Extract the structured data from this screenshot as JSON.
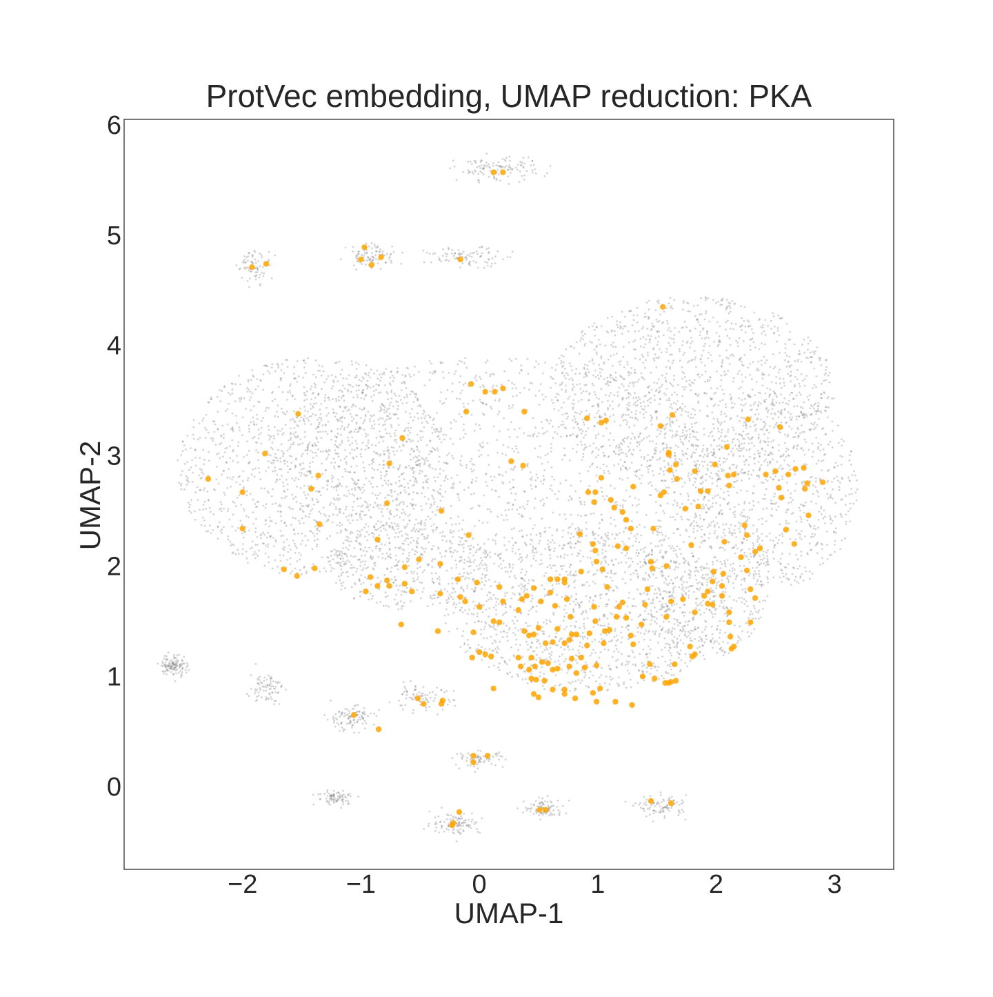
{
  "chart_data": {
    "type": "scatter",
    "title": "ProtVec embedding, UMAP reduction: PKA",
    "xlabel": "UMAP-1",
    "ylabel": "UMAP-2",
    "xlim": [
      -3.0,
      3.5
    ],
    "ylim": [
      -0.75,
      6.05
    ],
    "xticks": [
      -2,
      -1,
      0,
      1,
      2,
      3
    ],
    "yticks": [
      0,
      1,
      2,
      3,
      4,
      5,
      6
    ],
    "xtick_labels": [
      "−2",
      "−1",
      "0",
      "1",
      "2",
      "3"
    ],
    "ytick_labels": [
      "0",
      "1",
      "2",
      "3",
      "4",
      "5",
      "6"
    ],
    "grid": false,
    "legend": "none",
    "colors": {
      "background": "#ffffff",
      "frame": "#262626",
      "highlight": "#ffa500",
      "background_points": "#808080"
    },
    "background_clusters": [
      {
        "cx": 0.1,
        "cy": 3.0,
        "rx": 1.9,
        "ry": 0.9,
        "n": 1300
      },
      {
        "cx": -1.4,
        "cy": 2.9,
        "rx": 1.15,
        "ry": 1.0,
        "n": 1400
      },
      {
        "cx": 1.8,
        "cy": 3.6,
        "rx": 1.2,
        "ry": 0.85,
        "n": 1300
      },
      {
        "cx": 2.5,
        "cy": 2.7,
        "rx": 0.7,
        "ry": 0.9,
        "n": 700
      },
      {
        "cx": 0.9,
        "cy": 1.6,
        "rx": 1.2,
        "ry": 0.75,
        "n": 1300
      },
      {
        "cx": 1.9,
        "cy": 1.9,
        "rx": 0.55,
        "ry": 0.75,
        "n": 500
      },
      {
        "cx": -0.6,
        "cy": 2.0,
        "rx": 0.7,
        "ry": 0.4,
        "n": 400
      },
      {
        "cx": 0.15,
        "cy": 5.6,
        "rx": 0.25,
        "ry": 0.08,
        "n": 120
      },
      {
        "cx": -0.1,
        "cy": 4.8,
        "rx": 0.25,
        "ry": 0.06,
        "n": 90
      },
      {
        "cx": -0.9,
        "cy": 4.82,
        "rx": 0.15,
        "ry": 0.08,
        "n": 90
      },
      {
        "cx": -1.9,
        "cy": 4.72,
        "rx": 0.1,
        "ry": 0.1,
        "n": 70
      },
      {
        "cx": -2.58,
        "cy": 1.1,
        "rx": 0.08,
        "ry": 0.07,
        "n": 120
      },
      {
        "cx": -1.8,
        "cy": 0.9,
        "rx": 0.1,
        "ry": 0.1,
        "n": 80
      },
      {
        "cx": -1.1,
        "cy": 0.62,
        "rx": 0.15,
        "ry": 0.08,
        "n": 100
      },
      {
        "cx": -0.5,
        "cy": 0.8,
        "rx": 0.2,
        "ry": 0.08,
        "n": 80
      },
      {
        "cx": 0.0,
        "cy": 0.25,
        "rx": 0.15,
        "ry": 0.05,
        "n": 70
      },
      {
        "cx": -1.2,
        "cy": -0.1,
        "rx": 0.12,
        "ry": 0.05,
        "n": 80
      },
      {
        "cx": -0.2,
        "cy": -0.33,
        "rx": 0.15,
        "ry": 0.07,
        "n": 100
      },
      {
        "cx": 0.55,
        "cy": -0.2,
        "rx": 0.12,
        "ry": 0.06,
        "n": 90
      },
      {
        "cx": 1.55,
        "cy": -0.18,
        "rx": 0.15,
        "ry": 0.07,
        "n": 90
      }
    ],
    "series": [
      {
        "name": "",
        "color": "#ffa500",
        "points": [
          [
            0.12,
            5.57
          ],
          [
            0.2,
            5.57
          ],
          [
            -0.16,
            4.78
          ],
          [
            -0.97,
            4.89
          ],
          [
            -1.0,
            4.78
          ],
          [
            -0.91,
            4.73
          ],
          [
            -0.83,
            4.8
          ],
          [
            -1.92,
            4.71
          ],
          [
            -1.8,
            4.74
          ],
          [
            -0.07,
            3.65
          ],
          [
            0.05,
            3.58
          ],
          [
            0.13,
            3.58
          ],
          [
            0.2,
            3.61
          ],
          [
            -0.11,
            3.4
          ],
          [
            0.38,
            3.4
          ],
          [
            -1.53,
            3.38
          ],
          [
            -1.81,
            3.02
          ],
          [
            -2.29,
            2.79
          ],
          [
            -2.0,
            2.67
          ],
          [
            -2.0,
            2.34
          ],
          [
            -1.36,
            2.82
          ],
          [
            -1.42,
            2.7
          ],
          [
            -1.35,
            2.38
          ],
          [
            -0.65,
            3.16
          ],
          [
            -0.76,
            2.93
          ],
          [
            0.27,
            2.95
          ],
          [
            0.37,
            2.91
          ],
          [
            -0.78,
            2.57
          ],
          [
            -0.32,
            2.5
          ],
          [
            -0.86,
            2.24
          ],
          [
            -0.09,
            2.28
          ],
          [
            -1.65,
            1.97
          ],
          [
            -1.54,
            1.91
          ],
          [
            -1.39,
            1.98
          ],
          [
            -0.51,
            2.06
          ],
          [
            -0.63,
            1.99
          ],
          [
            -0.92,
            1.9
          ],
          [
            -0.96,
            1.77
          ],
          [
            -0.86,
            1.82
          ],
          [
            -0.78,
            1.87
          ],
          [
            -0.76,
            1.82
          ],
          [
            -0.63,
            1.84
          ],
          [
            -0.57,
            1.77
          ],
          [
            -0.33,
            2.02
          ],
          [
            -0.33,
            1.75
          ],
          [
            -0.18,
            1.88
          ],
          [
            -0.16,
            1.72
          ],
          [
            -0.12,
            1.68
          ],
          [
            -0.02,
            1.85
          ],
          [
            0.0,
            1.63
          ],
          [
            -0.66,
            1.47
          ],
          [
            -0.35,
            1.41
          ],
          [
            -0.05,
            1.4
          ],
          [
            0.17,
            1.81
          ],
          [
            0.2,
            1.68
          ],
          [
            0.12,
            1.5
          ],
          [
            0.17,
            1.49
          ],
          [
            0.33,
            1.6
          ],
          [
            0.36,
            1.7
          ],
          [
            0.4,
            1.73
          ],
          [
            0.46,
            1.8
          ],
          [
            0.52,
            1.68
          ],
          [
            0.6,
            1.76
          ],
          [
            0.6,
            1.88
          ],
          [
            0.66,
            1.88
          ],
          [
            0.72,
            1.88
          ],
          [
            0.72,
            1.85
          ],
          [
            0.64,
            1.64
          ],
          [
            0.74,
            1.7
          ],
          [
            0.77,
            1.54
          ],
          [
            0.86,
            1.95
          ],
          [
            0.96,
            2.2
          ],
          [
            0.99,
            2.04
          ],
          [
            1.04,
            1.97
          ],
          [
            1.08,
            1.81
          ],
          [
            0.97,
            1.63
          ],
          [
            0.98,
            1.5
          ],
          [
            1.06,
            1.41
          ],
          [
            1.1,
            1.42
          ],
          [
            1.16,
            1.54
          ],
          [
            1.21,
            1.67
          ],
          [
            1.18,
            1.63
          ],
          [
            1.24,
            1.53
          ],
          [
            1.28,
            1.37
          ],
          [
            1.3,
            1.29
          ],
          [
            1.37,
            1.47
          ],
          [
            1.4,
            1.65
          ],
          [
            1.42,
            1.79
          ],
          [
            1.45,
            2.04
          ],
          [
            1.46,
            1.98
          ],
          [
            1.58,
            2.0
          ],
          [
            1.58,
            1.54
          ],
          [
            1.62,
            1.68
          ],
          [
            1.72,
            1.7
          ],
          [
            1.82,
            1.58
          ],
          [
            1.78,
            1.27
          ],
          [
            1.82,
            1.2
          ],
          [
            1.8,
            1.18
          ],
          [
            1.65,
            1.11
          ],
          [
            1.62,
            0.95
          ],
          [
            1.57,
            0.94
          ],
          [
            1.48,
            0.98
          ],
          [
            1.38,
            1.0
          ],
          [
            1.44,
            1.11
          ],
          [
            0.38,
            1.41
          ],
          [
            0.42,
            1.37
          ],
          [
            0.46,
            1.38
          ],
          [
            0.5,
            1.44
          ],
          [
            0.56,
            1.3
          ],
          [
            0.62,
            1.31
          ],
          [
            0.66,
            1.43
          ],
          [
            0.72,
            1.3
          ],
          [
            0.76,
            1.33
          ],
          [
            0.78,
            1.38
          ],
          [
            0.82,
            1.38
          ],
          [
            0.86,
            1.17
          ],
          [
            0.91,
            1.28
          ],
          [
            0.93,
            1.39
          ],
          [
            1.05,
            1.3
          ],
          [
            0.1,
            1.18
          ],
          [
            0.0,
            1.22
          ],
          [
            0.05,
            1.2
          ],
          [
            -0.06,
            1.17
          ],
          [
            0.33,
            1.17
          ],
          [
            0.35,
            1.09
          ],
          [
            0.42,
            1.06
          ],
          [
            0.44,
            1.17
          ],
          [
            0.47,
            1.09
          ],
          [
            0.53,
            1.13
          ],
          [
            0.58,
            1.12
          ],
          [
            0.62,
            1.06
          ],
          [
            0.66,
            1.07
          ],
          [
            0.76,
            1.09
          ],
          [
            0.78,
            1.16
          ],
          [
            0.82,
            1.03
          ],
          [
            0.89,
            1.08
          ],
          [
            0.99,
            1.1
          ],
          [
            0.44,
            0.98
          ],
          [
            0.48,
            0.97
          ],
          [
            0.55,
            0.96
          ],
          [
            0.62,
            0.88
          ],
          [
            0.72,
            0.88
          ],
          [
            0.72,
            0.84
          ],
          [
            0.81,
            0.8
          ],
          [
            0.46,
            0.84
          ],
          [
            0.5,
            0.81
          ],
          [
            0.96,
            0.85
          ],
          [
            1.02,
            0.89
          ],
          [
            0.99,
            0.77
          ],
          [
            1.15,
            0.77
          ],
          [
            1.29,
            0.74
          ],
          [
            0.12,
            0.89
          ],
          [
            -0.52,
            0.8
          ],
          [
            -0.47,
            0.75
          ],
          [
            -0.31,
            0.78
          ],
          [
            -0.32,
            0.75
          ],
          [
            -1.06,
            0.65
          ],
          [
            -0.85,
            0.52
          ],
          [
            -0.05,
            0.28
          ],
          [
            0.07,
            0.28
          ],
          [
            -0.05,
            0.22
          ],
          [
            -0.17,
            -0.23
          ],
          [
            -0.22,
            -0.33
          ],
          [
            -0.23,
            -0.35
          ],
          [
            0.51,
            -0.21
          ],
          [
            0.56,
            -0.21
          ],
          [
            1.45,
            -0.13
          ],
          [
            1.62,
            -0.15
          ],
          [
            0.91,
            3.34
          ],
          [
            1.03,
            3.3
          ],
          [
            1.07,
            3.32
          ],
          [
            1.03,
            2.8
          ],
          [
            0.92,
            2.67
          ],
          [
            0.98,
            2.67
          ],
          [
            0.97,
            2.58
          ],
          [
            1.11,
            2.6
          ],
          [
            1.14,
            2.53
          ],
          [
            1.21,
            2.49
          ],
          [
            1.24,
            2.42
          ],
          [
            1.28,
            2.34
          ],
          [
            1.3,
            2.72
          ],
          [
            0.85,
            2.29
          ],
          [
            0.98,
            2.14
          ],
          [
            1.17,
            2.18
          ],
          [
            1.24,
            2.16
          ],
          [
            1.47,
            2.34
          ],
          [
            1.53,
            2.64
          ],
          [
            1.56,
            2.67
          ],
          [
            1.53,
            3.27
          ],
          [
            1.6,
            3.01
          ],
          [
            1.6,
            3.03
          ],
          [
            1.63,
            3.37
          ],
          [
            1.61,
            2.87
          ],
          [
            1.66,
            2.92
          ],
          [
            1.67,
            2.79
          ],
          [
            1.74,
            2.52
          ],
          [
            1.79,
            2.19
          ],
          [
            1.85,
            2.54
          ],
          [
            1.87,
            2.68
          ],
          [
            1.93,
            2.68
          ],
          [
            1.99,
            2.92
          ],
          [
            2.09,
            3.08
          ],
          [
            2.1,
            2.82
          ],
          [
            2.11,
            2.73
          ],
          [
            2.15,
            2.83
          ],
          [
            2.24,
            2.37
          ],
          [
            2.26,
            2.28
          ],
          [
            2.21,
            2.08
          ],
          [
            2.33,
            2.13
          ],
          [
            2.37,
            2.16
          ],
          [
            2.42,
            2.83
          ],
          [
            2.27,
            3.33
          ],
          [
            2.54,
            3.26
          ],
          [
            2.5,
            2.86
          ],
          [
            2.53,
            2.71
          ],
          [
            2.55,
            2.62
          ],
          [
            2.61,
            2.83
          ],
          [
            2.67,
            2.88
          ],
          [
            2.74,
            2.89
          ],
          [
            2.77,
            2.75
          ],
          [
            2.75,
            2.7
          ],
          [
            2.78,
            2.46
          ],
          [
            2.59,
            2.33
          ],
          [
            2.66,
            2.2
          ],
          [
            2.9,
            2.76
          ],
          [
            1.55,
            4.35
          ],
          [
            1.82,
            2.86
          ],
          [
            2.07,
            2.22
          ],
          [
            2.06,
            1.93
          ],
          [
            1.98,
            1.95
          ],
          [
            1.97,
            1.86
          ],
          [
            1.93,
            1.77
          ],
          [
            1.9,
            1.73
          ],
          [
            1.93,
            1.66
          ],
          [
            1.97,
            1.65
          ],
          [
            2.05,
            1.73
          ],
          [
            2.11,
            1.58
          ],
          [
            2.11,
            1.49
          ],
          [
            2.12,
            1.36
          ],
          [
            2.15,
            1.27
          ],
          [
            2.13,
            1.25
          ],
          [
            2.26,
            1.96
          ],
          [
            2.29,
            1.79
          ],
          [
            2.33,
            1.71
          ],
          [
            2.29,
            1.49
          ],
          [
            2.05,
            1.82
          ],
          [
            1.6,
            0.94
          ],
          [
            1.66,
            0.96
          ]
        ]
      }
    ]
  }
}
